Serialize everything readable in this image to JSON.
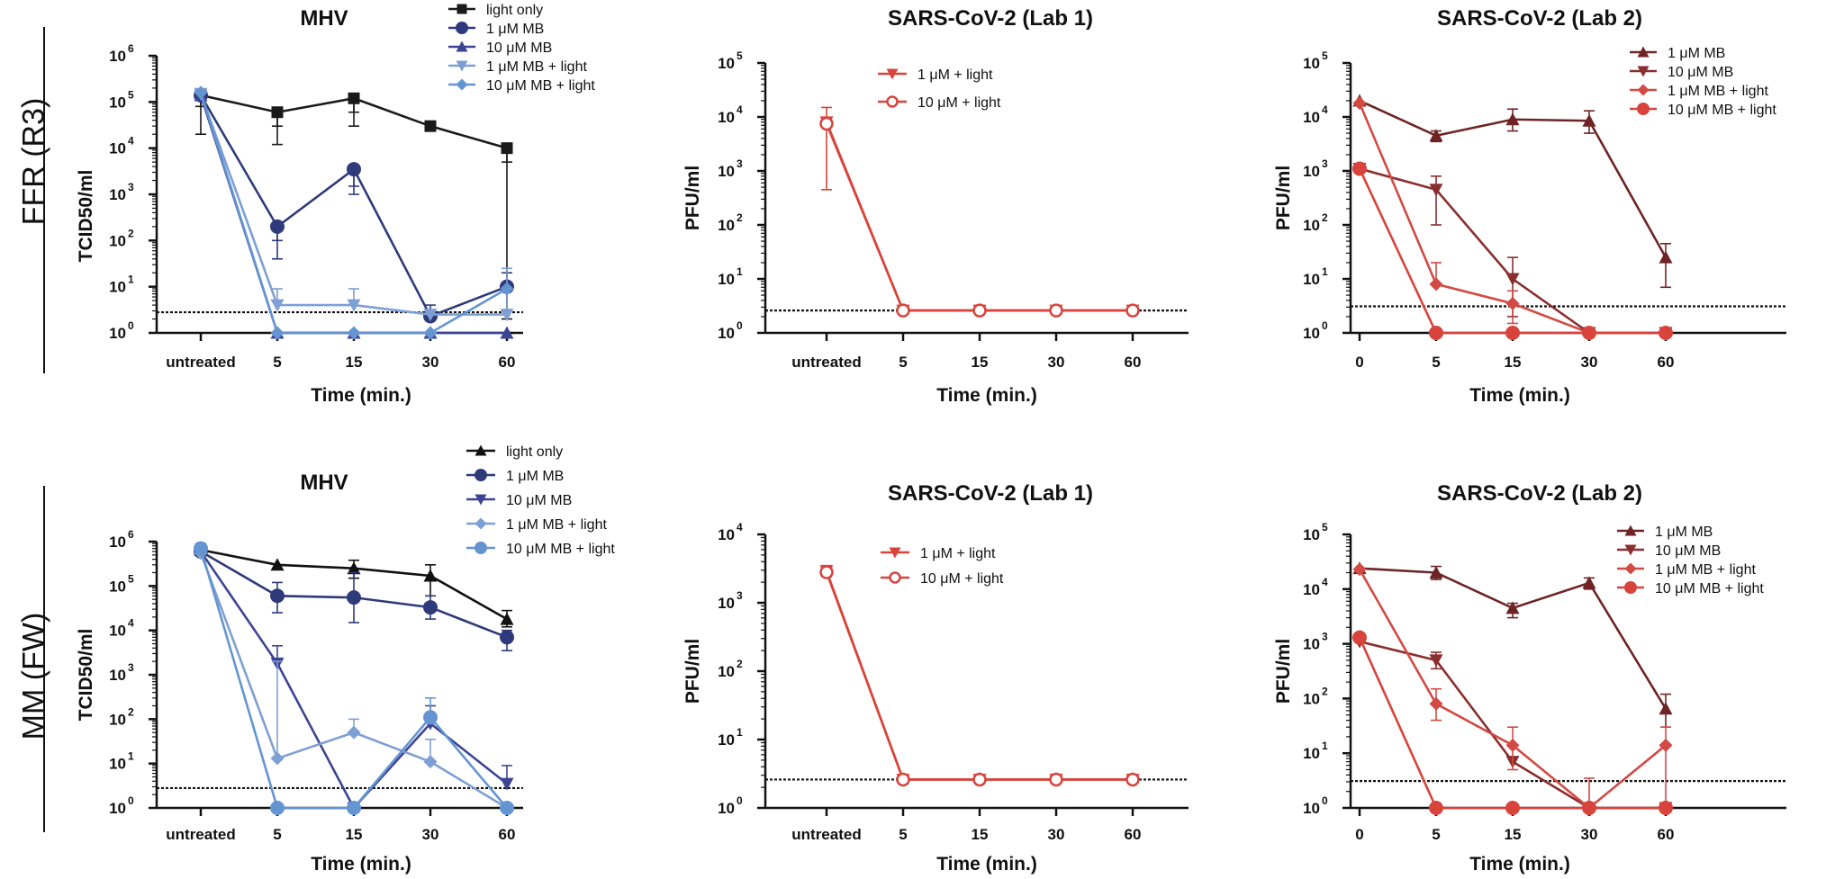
{
  "row_labels": [
    "FFR (R3)",
    "MM (FW)"
  ],
  "chart_data": [
    {
      "type": "line",
      "title": "MHV",
      "xlabel": "Time (min.)",
      "ylabel": "TCID50/ml",
      "yscale": "log",
      "ylim_exp": [
        0,
        6
      ],
      "detection_limit": 2.8,
      "categories": [
        "untreated",
        "5",
        "15",
        "30",
        "60"
      ],
      "series": [
        {
          "name": "light only",
          "color": "#1a1a1a",
          "marker": "square",
          "values": [
            140000,
            60000,
            120000,
            30000,
            10000
          ],
          "err": [
            [
              80000,
              20000
            ],
            [
              12000,
              30000
            ],
            [
              60000,
              30000
            ],
            [
              null,
              null
            ],
            [
              2,
              5000
            ]
          ]
        },
        {
          "name": "1 μM MB",
          "color": "#2e3a7a",
          "marker": "circle",
          "values": [
            140000,
            200,
            3500,
            2.3,
            10
          ],
          "err": [
            [
              null,
              null
            ],
            [
              40,
              100
            ],
            [
              1000,
              1500
            ],
            [
              null,
              4
            ],
            [
              null,
              20
            ]
          ]
        },
        {
          "name": "10 μM MB",
          "color": "#3c4494",
          "marker": "triangle-up",
          "values": [
            140000,
            1,
            1,
            1,
            1
          ],
          "err": [
            [
              null,
              null
            ],
            [
              null,
              null
            ],
            [
              null,
              null
            ],
            [
              null,
              null
            ],
            [
              null,
              null
            ]
          ]
        },
        {
          "name": "1 μM MB + light",
          "color": "#7d9fd3",
          "marker": "triangle-down",
          "values": [
            150000,
            4,
            4,
            2.5,
            2.5
          ],
          "err": [
            [
              null,
              null
            ],
            [
              null,
              9
            ],
            [
              null,
              9
            ],
            [
              null,
              null
            ],
            [
              null,
              25
            ]
          ]
        },
        {
          "name": "10 μM MB + light",
          "color": "#6495d1",
          "marker": "diamond",
          "values": [
            160000,
            1,
            1,
            1,
            9
          ],
          "err": [
            [
              null,
              null
            ],
            [
              null,
              null
            ],
            [
              null,
              null
            ],
            [
              null,
              null
            ],
            [
              null,
              null
            ]
          ]
        }
      ]
    },
    {
      "type": "line",
      "title": "SARS-CoV-2 (Lab 1)",
      "xlabel": "Time (min.)",
      "ylabel": "PFU/ml",
      "yscale": "log",
      "ylim_exp": [
        0,
        5
      ],
      "detection_limit": 2.6,
      "categories": [
        "untreated",
        "5",
        "15",
        "30",
        "60"
      ],
      "series": [
        {
          "name": "1 μM + light",
          "color": "#d8433b",
          "marker": "triangle-down",
          "values": [
            8000,
            2.6,
            2.6,
            2.6,
            2.6
          ],
          "err": [
            [
              450,
              15000
            ],
            [
              null,
              null
            ],
            [
              null,
              null
            ],
            [
              null,
              null
            ],
            [
              null,
              null
            ]
          ]
        },
        {
          "name": "10 μM + light",
          "color": "#d8433b",
          "marker": "circle-open",
          "values": [
            7500,
            2.6,
            2.6,
            2.6,
            2.6
          ],
          "err": [
            [
              null,
              null
            ],
            [
              null,
              null
            ],
            [
              null,
              null
            ],
            [
              null,
              null
            ],
            [
              null,
              null
            ]
          ]
        }
      ]
    },
    {
      "type": "line",
      "title": "SARS-CoV-2  (Lab 2)",
      "xlabel": "Time (min.)",
      "ylabel": "PFU/ml",
      "yscale": "log",
      "ylim_exp": [
        0,
        5
      ],
      "detection_limit": 3.1,
      "categories": [
        "0",
        "5",
        "15",
        "30",
        "60"
      ],
      "series": [
        {
          "name": "1 μM MB",
          "color": "#6e2424",
          "marker": "triangle-up",
          "values": [
            20000,
            4500,
            9000,
            8500,
            25
          ],
          "err": [
            [
              null,
              null
            ],
            [
              3500,
              5500
            ],
            [
              5500,
              14000
            ],
            [
              5000,
              13000
            ],
            [
              7,
              45
            ]
          ]
        },
        {
          "name": "10 μM MB",
          "color": "#8a2e2e",
          "marker": "triangle-down",
          "values": [
            1100,
            450,
            10,
            1,
            1
          ],
          "err": [
            [
              null,
              null
            ],
            [
              100,
              800
            ],
            [
              2,
              25
            ],
            [
              null,
              null
            ],
            [
              null,
              null
            ]
          ]
        },
        {
          "name": "1 μM MB + light",
          "color": "#d24a43",
          "marker": "diamond",
          "values": [
            18000,
            8,
            3.5,
            1,
            1
          ],
          "err": [
            [
              null,
              null
            ],
            [
              null,
              20
            ],
            [
              1.5,
              6
            ],
            [
              null,
              null
            ],
            [
              null,
              null
            ]
          ]
        },
        {
          "name": "10 μM MB + light",
          "color": "#d8433b",
          "marker": "circle",
          "values": [
            1100,
            1,
            1,
            1,
            1
          ],
          "err": [
            [
              null,
              null
            ],
            [
              null,
              null
            ],
            [
              null,
              null
            ],
            [
              null,
              null
            ],
            [
              null,
              null
            ]
          ]
        }
      ]
    },
    {
      "type": "line",
      "title": "MHV",
      "xlabel": "Time (min.)",
      "ylabel": "TCID50/ml",
      "yscale": "log",
      "ylim_exp": [
        0,
        6
      ],
      "detection_limit": 2.8,
      "categories": [
        "untreated",
        "5",
        "15",
        "30",
        "60"
      ],
      "series": [
        {
          "name": "light only",
          "color": "#111111",
          "marker": "triangle-up",
          "values": [
            650000,
            300000,
            250000,
            170000,
            18000
          ],
          "err": [
            [
              null,
              null
            ],
            [
              null,
              null
            ],
            [
              150000,
              380000
            ],
            [
              60000,
              300000
            ],
            [
              12000,
              28000
            ]
          ]
        },
        {
          "name": "1 μM MB",
          "color": "#2e3a7a",
          "marker": "circle",
          "values": [
            600000,
            60000,
            55000,
            33000,
            7000
          ],
          "err": [
            [
              500000,
              900000
            ],
            [
              25000,
              120000
            ],
            [
              15000,
              200000
            ],
            [
              18000,
              60000
            ],
            [
              3500,
              10000
            ]
          ]
        },
        {
          "name": "10 μM MB",
          "color": "#3c4494",
          "marker": "triangle-down",
          "values": [
            600000,
            1800,
            1,
            80,
            3.5
          ],
          "err": [
            [
              null,
              null
            ],
            [
              null,
              4500
            ],
            [
              null,
              null
            ],
            [
              null,
              200
            ],
            [
              null,
              9
            ]
          ]
        },
        {
          "name": "1 μM MB + light",
          "color": "#7d9fd3",
          "marker": "diamond",
          "values": [
            550000,
            13,
            50,
            11,
            1
          ],
          "err": [
            [
              null,
              null
            ],
            [
              null,
              2000
            ],
            [
              null,
              100
            ],
            [
              null,
              35
            ],
            [
              null,
              null
            ]
          ]
        },
        {
          "name": "10 μM MB + light",
          "color": "#6495d1",
          "marker": "circle",
          "values": [
            700000,
            1,
            1,
            110,
            1
          ],
          "err": [
            [
              null,
              null
            ],
            [
              null,
              null
            ],
            [
              null,
              null
            ],
            [
              null,
              300
            ],
            [
              null,
              null
            ]
          ]
        }
      ]
    },
    {
      "type": "line",
      "title": "SARS-CoV-2 (Lab 1)",
      "xlabel": "Time (min.)",
      "ylabel": "PFU/ml",
      "yscale": "log",
      "ylim_exp": [
        0,
        4
      ],
      "detection_limit": 2.6,
      "categories": [
        "untreated",
        "5",
        "15",
        "30",
        "60"
      ],
      "series": [
        {
          "name": "1 μM + light",
          "color": "#d8433b",
          "marker": "triangle-down",
          "values": [
            2900,
            2.6,
            2.6,
            2.6,
            2.6
          ],
          "err": [
            [
              2400,
              3500
            ],
            [
              null,
              null
            ],
            [
              null,
              null
            ],
            [
              null,
              null
            ],
            [
              null,
              null
            ]
          ]
        },
        {
          "name": "10 μM + light",
          "color": "#d8433b",
          "marker": "circle-open",
          "values": [
            2800,
            2.6,
            2.6,
            2.6,
            2.6
          ],
          "err": [
            [
              null,
              null
            ],
            [
              null,
              null
            ],
            [
              null,
              null
            ],
            [
              null,
              null
            ],
            [
              null,
              null
            ]
          ]
        }
      ]
    },
    {
      "type": "line",
      "title": "SARS-CoV-2 (Lab 2)",
      "xlabel": "Time (min.)",
      "ylabel": "PFU/ml",
      "yscale": "log",
      "ylim_exp": [
        0,
        5
      ],
      "detection_limit": 3.1,
      "categories": [
        "0",
        "5",
        "15",
        "30",
        "60"
      ],
      "series": [
        {
          "name": "1 μM MB",
          "color": "#6e2424",
          "marker": "triangle-up",
          "values": [
            24000,
            20000,
            4500,
            13000,
            65
          ],
          "err": [
            [
              null,
              null
            ],
            [
              15000,
              26000
            ],
            [
              3000,
              5500
            ],
            [
              10000,
              16000
            ],
            [
              30,
              120
            ]
          ]
        },
        {
          "name": "10 μM MB",
          "color": "#8a2e2e",
          "marker": "triangle-down",
          "values": [
            1100,
            500,
            7,
            1,
            1
          ],
          "err": [
            [
              null,
              null
            ],
            [
              350,
              700
            ],
            [
              null,
              null
            ],
            [
              null,
              null
            ],
            [
              null,
              null
            ]
          ]
        },
        {
          "name": "1 μM MB + light",
          "color": "#d24a43",
          "marker": "diamond",
          "values": [
            23000,
            80,
            14,
            1,
            14
          ],
          "err": [
            [
              null,
              null
            ],
            [
              40,
              150
            ],
            [
              5,
              30
            ],
            [
              null,
              3.5
            ],
            [
              1.2,
              30
            ]
          ]
        },
        {
          "name": "10 μM MB + light",
          "color": "#d8433b",
          "marker": "circle",
          "values": [
            1300,
            1,
            1,
            1,
            1
          ],
          "err": [
            [
              null,
              null
            ],
            [
              null,
              null
            ],
            [
              null,
              null
            ],
            [
              null,
              null
            ],
            [
              null,
              null
            ]
          ]
        }
      ]
    }
  ]
}
